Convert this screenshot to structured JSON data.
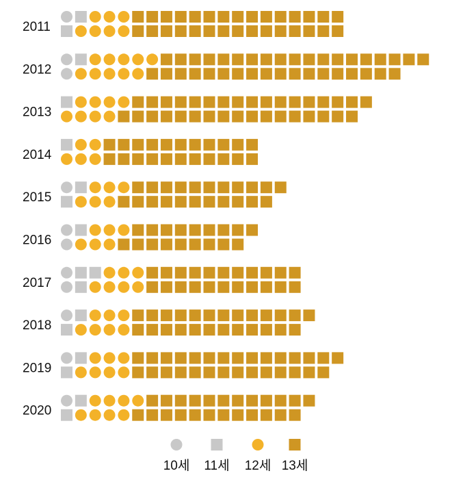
{
  "chart_data": {
    "type": "waffle",
    "title": "",
    "legend_placement": "bottom-center",
    "series": [
      {
        "name": "10세",
        "marker": "circle",
        "color": "#c8c8c8"
      },
      {
        "name": "11세",
        "marker": "square",
        "color": "#c8c8c8"
      },
      {
        "name": "12세",
        "marker": "circle",
        "color": "#f3b229"
      },
      {
        "name": "13세",
        "marker": "square",
        "color": "#cf9623"
      }
    ],
    "categories": [
      "2011",
      "2012",
      "2013",
      "2014",
      "2015",
      "2016",
      "2017",
      "2018",
      "2019",
      "2020"
    ],
    "rows": [
      {
        "year": "2011",
        "top": [
          1,
          1,
          3,
          15
        ],
        "bottom": [
          0,
          1,
          4,
          15
        ]
      },
      {
        "year": "2012",
        "top": [
          1,
          1,
          5,
          19
        ],
        "bottom": [
          1,
          0,
          5,
          18
        ]
      },
      {
        "year": "2013",
        "top": [
          0,
          1,
          4,
          17
        ],
        "bottom": [
          0,
          0,
          4,
          17
        ]
      },
      {
        "year": "2014",
        "top": [
          0,
          1,
          2,
          11
        ],
        "bottom": [
          0,
          0,
          3,
          11
        ]
      },
      {
        "year": "2015",
        "top": [
          1,
          1,
          3,
          11
        ],
        "bottom": [
          0,
          1,
          3,
          11
        ]
      },
      {
        "year": "2016",
        "top": [
          1,
          1,
          3,
          9
        ],
        "bottom": [
          1,
          0,
          3,
          9
        ]
      },
      {
        "year": "2017",
        "top": [
          1,
          2,
          3,
          11
        ],
        "bottom": [
          1,
          1,
          4,
          11
        ]
      },
      {
        "year": "2018",
        "top": [
          1,
          1,
          3,
          13
        ],
        "bottom": [
          0,
          1,
          4,
          12
        ]
      },
      {
        "year": "2019",
        "top": [
          1,
          1,
          3,
          15
        ],
        "bottom": [
          0,
          1,
          4,
          14
        ]
      },
      {
        "year": "2020",
        "top": [
          1,
          1,
          4,
          12
        ],
        "bottom": [
          0,
          1,
          4,
          12
        ]
      }
    ]
  }
}
